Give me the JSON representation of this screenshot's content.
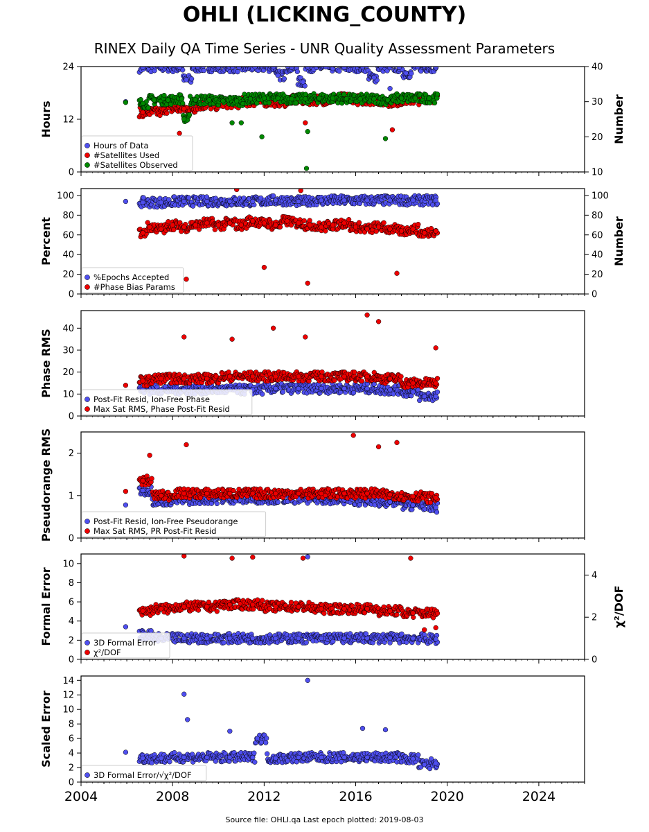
{
  "page": {
    "title": "OHLI (LICKING_COUNTY)",
    "subtitle": "RINEX Daily QA Time Series - UNR Quality Assessment Parameters",
    "footer": "Source file: OHLI.qa Last epoch plotted: 2019-08-03"
  },
  "colors": {
    "blue": "#4f4fef",
    "red": "#ee0000",
    "green": "#008800",
    "edge": "#000000"
  },
  "chart_data": [
    {
      "type": "scatter",
      "id": "hours",
      "ylabel": "Hours",
      "y2label": "Number",
      "xlim": [
        2004,
        2026
      ],
      "ylim": [
        0,
        24
      ],
      "y2lim": [
        10,
        40
      ],
      "yticks": [
        0,
        12,
        24
      ],
      "y2ticks": [
        10,
        20,
        30,
        40
      ],
      "legend": "lower-left",
      "series": [
        {
          "name": "Hours of Data",
          "color": "blue",
          "axis": "left",
          "x": [
            2005.95,
            2006.7,
            2007.5,
            2008.3,
            2009.1,
            2010.0,
            2010.9,
            2011.6,
            2012.4,
            2013.2,
            2013.9,
            2014.7,
            2015.5,
            2016.3,
            2017.1,
            2017.9,
            2018.7,
            2019.5,
            2008.6,
            2012.6,
            2013.7,
            2016.8,
            2017.5,
            2018.2
          ],
          "y": [
            16.0,
            23.8,
            23.9,
            23.8,
            23.9,
            23.9,
            23.8,
            23.9,
            23.9,
            23.8,
            23.9,
            23.9,
            23.8,
            23.9,
            23.9,
            23.8,
            23.9,
            23.9,
            21.0,
            22.0,
            20.5,
            21.5,
            19.0,
            22.5
          ]
        },
        {
          "name": "#Satellites Used",
          "color": "red",
          "axis": "right",
          "x": [
            2006.7,
            2008.5,
            2009.5,
            2010.5,
            2011.5,
            2012.5,
            2013.5,
            2014.5,
            2015.5,
            2016.5,
            2017.5,
            2018.5,
            2019.5,
            2008.3,
            2013.8,
            2017.6
          ],
          "y": [
            27.0,
            28.0,
            29.0,
            29.5,
            30.0,
            30.0,
            30.5,
            30.5,
            31.0,
            30.5,
            30.0,
            30.5,
            31.0,
            21.0,
            24.0,
            22.0
          ]
        },
        {
          "name": "#Satellites Observed",
          "color": "green",
          "axis": "right",
          "x": [
            2005.95,
            2006.7,
            2007.2,
            2007.8,
            2008.4,
            2009.0,
            2009.6,
            2010.2,
            2010.8,
            2011.4,
            2012.0,
            2012.6,
            2013.2,
            2013.8,
            2014.4,
            2015.0,
            2015.6,
            2016.2,
            2016.8,
            2017.4,
            2018.0,
            2018.6,
            2019.2,
            2019.55,
            2010.6,
            2011.0,
            2011.9,
            2013.9,
            2017.3,
            2008.5,
            2013.85
          ],
          "y": [
            29.8,
            29.5,
            30.5,
            30.5,
            30.8,
            30.5,
            30.5,
            30.2,
            30.2,
            30.8,
            31.0,
            31.0,
            30.8,
            30.8,
            31.0,
            31.0,
            30.8,
            30.8,
            30.8,
            30.5,
            31.0,
            31.0,
            31.0,
            31.0,
            24.0,
            24.0,
            20.0,
            21.5,
            19.5,
            25.0,
            11.0
          ]
        }
      ]
    },
    {
      "type": "scatter",
      "id": "percent",
      "ylabel": "Percent",
      "y2label": "Number",
      "xlim": [
        2004,
        2026
      ],
      "ylim": [
        0,
        107
      ],
      "y2lim": [
        0,
        107
      ],
      "yticks": [
        0,
        20,
        40,
        60,
        80,
        100
      ],
      "y2ticks": [
        0,
        20,
        40,
        60,
        80,
        100
      ],
      "legend": "lower-left",
      "series": [
        {
          "name": "%Epochs Accepted",
          "color": "blue",
          "x": [
            2005.95,
            2006.7,
            2007.5,
            2008.5,
            2009.5,
            2010.5,
            2011.5,
            2012.5,
            2013.5,
            2014.5,
            2015.5,
            2016.5,
            2017.5,
            2018.5,
            2019.5
          ],
          "y": [
            94,
            93,
            93,
            94,
            94,
            94,
            94,
            95,
            94,
            95,
            95,
            95,
            95,
            95,
            95
          ]
        },
        {
          "name": "#Phase Bias Params",
          "color": "red",
          "x": [
            2006.7,
            2007.0,
            2007.5,
            2008.0,
            2008.5,
            2009.0,
            2009.5,
            2010.0,
            2010.5,
            2011.0,
            2011.5,
            2012.0,
            2012.5,
            2013.0,
            2013.5,
            2014.0,
            2014.5,
            2015.0,
            2015.5,
            2016.0,
            2016.5,
            2017.0,
            2017.5,
            2018.0,
            2018.5,
            2019.0,
            2019.5,
            2008.6,
            2010.8,
            2013.6,
            2013.9,
            2017.8,
            2012.0
          ],
          "y": [
            62,
            68,
            66,
            70,
            68,
            70,
            72,
            70,
            72,
            70,
            74,
            72,
            70,
            74,
            72,
            70,
            68,
            70,
            72,
            68,
            66,
            68,
            66,
            64,
            66,
            62,
            64,
            15,
            106,
            105,
            11,
            21,
            27
          ]
        }
      ]
    },
    {
      "type": "scatter",
      "id": "phase-rms",
      "ylabel": "Phase RMS",
      "xlim": [
        2004,
        2026
      ],
      "ylim": [
        0,
        48
      ],
      "yticks": [
        0,
        10,
        20,
        30,
        40
      ],
      "legend": "lower-left",
      "series": [
        {
          "name": "Post-Fit Resid, Ion-Free Phase",
          "color": "blue",
          "x": [
            2006.7,
            2007.5,
            2008.5,
            2009.5,
            2010.5,
            2011.5,
            2012.5,
            2013.5,
            2014.5,
            2015.5,
            2016.5,
            2017.5,
            2018.5,
            2019.0,
            2019.5
          ],
          "y": [
            12,
            12,
            12,
            12,
            12,
            12,
            12.5,
            12.5,
            12.5,
            12.5,
            12.5,
            12,
            11,
            9,
            9
          ]
        },
        {
          "name": "Max Sat RMS, Phase Post-Fit Resid",
          "color": "red",
          "x": [
            2005.95,
            2006.7,
            2007.5,
            2008.5,
            2009.5,
            2010.5,
            2011.5,
            2012.5,
            2013.5,
            2014.5,
            2015.5,
            2016.5,
            2017.5,
            2018.5,
            2019.5,
            2012.4,
            2016.5,
            2017.0,
            2013.8,
            2008.5,
            2010.6,
            2019.5
          ],
          "y": [
            14,
            16,
            17,
            17,
            17,
            18,
            18,
            18,
            18,
            18,
            18,
            18,
            17,
            15,
            15,
            40,
            46,
            43,
            36,
            36,
            35,
            31
          ]
        }
      ]
    },
    {
      "type": "scatter",
      "id": "pseudorange-rms",
      "ylabel": "Pseudorange RMS",
      "xlim": [
        2004,
        2026
      ],
      "ylim": [
        0,
        2.5
      ],
      "yticks": [
        0,
        1,
        2
      ],
      "legend": "lower-left",
      "series": [
        {
          "name": "Post-Fit Resid, Ion-Free Pseudorange",
          "color": "blue",
          "x": [
            2005.95,
            2006.7,
            2007.5,
            2008.5,
            2009.5,
            2010.5,
            2011.5,
            2012.5,
            2013.5,
            2014.5,
            2015.5,
            2016.5,
            2017.5,
            2018.5,
            2019.5
          ],
          "y": [
            0.78,
            1.12,
            0.88,
            0.9,
            0.92,
            0.93,
            0.93,
            0.93,
            0.93,
            0.92,
            0.9,
            0.88,
            0.85,
            0.78,
            0.72
          ]
        },
        {
          "name": "Max Sat RMS, PR Post-Fit Resid",
          "color": "red",
          "x": [
            2005.95,
            2006.7,
            2007.5,
            2008.5,
            2009.5,
            2010.5,
            2011.5,
            2012.5,
            2013.5,
            2014.5,
            2015.5,
            2016.5,
            2017.5,
            2018.5,
            2019.5,
            2008.6,
            2015.9,
            2017.0,
            2017.8,
            2007.0
          ],
          "y": [
            1.1,
            1.35,
            1.0,
            1.05,
            1.05,
            1.05,
            1.05,
            1.05,
            1.05,
            1.05,
            1.05,
            1.05,
            1.02,
            0.98,
            0.95,
            2.2,
            2.42,
            2.15,
            2.25,
            1.95
          ]
        }
      ]
    },
    {
      "type": "scatter",
      "id": "formal-error",
      "ylabel": "Formal Error",
      "y2label": "χ²/DOF",
      "xlim": [
        2004,
        2026
      ],
      "ylim": [
        0,
        11
      ],
      "y2lim": [
        0,
        5
      ],
      "yticks": [
        0,
        2,
        4,
        6,
        8,
        10
      ],
      "y2ticks": [
        0,
        2,
        4
      ],
      "legend": "lower-left",
      "series": [
        {
          "name": "3D Formal Error",
          "color": "blue",
          "axis": "left",
          "x": [
            2005.95,
            2006.7,
            2007.5,
            2008.5,
            2009.5,
            2010.5,
            2011.5,
            2012.5,
            2013.5,
            2014.5,
            2015.5,
            2016.5,
            2017.5,
            2018.5,
            2019.5,
            2013.9
          ],
          "y": [
            3.4,
            2.5,
            2.2,
            2.2,
            2.2,
            2.2,
            2.2,
            2.2,
            2.2,
            2.2,
            2.2,
            2.2,
            2.2,
            2.2,
            2.1,
            10.7
          ]
        },
        {
          "name": "χ²/DOF",
          "color": "red",
          "axis": "right",
          "x": [
            2006.7,
            2007.5,
            2008.5,
            2009.5,
            2010.5,
            2011.5,
            2012.5,
            2013.5,
            2014.5,
            2015.5,
            2016.5,
            2017.5,
            2018.5,
            2019.0,
            2019.5,
            2008.5,
            2011.5,
            2010.6,
            2013.7,
            2018.4
          ],
          "y": [
            2.3,
            2.4,
            2.5,
            2.5,
            2.6,
            2.6,
            2.5,
            2.5,
            2.4,
            2.4,
            2.4,
            2.3,
            2.2,
            1.4,
            1.5,
            4.9,
            4.85,
            4.8,
            4.8,
            4.8
          ]
        }
      ]
    },
    {
      "type": "scatter",
      "id": "scaled-error",
      "ylabel": "Scaled Error",
      "xlabel_ticks": [
        "2004",
        "2008",
        "2012",
        "2016",
        "2020",
        "2024"
      ],
      "xticks": [
        2004,
        2008,
        2012,
        2016,
        2020,
        2024
      ],
      "xlim": [
        2004,
        2026
      ],
      "ylim": [
        0,
        14.6
      ],
      "yticks": [
        0,
        2,
        4,
        6,
        8,
        10,
        12,
        14
      ],
      "legend": "lower-left",
      "series": [
        {
          "name": "3D Formal Error/√χ²/DOF",
          "color": "blue",
          "x": [
            2005.95,
            2006.7,
            2007.5,
            2008.5,
            2009.5,
            2010.5,
            2011.5,
            2012.5,
            2013.5,
            2014.5,
            2015.5,
            2016.5,
            2017.5,
            2018.5,
            2019.0,
            2019.5,
            2013.9,
            2008.5,
            2008.65,
            2016.3,
            2017.3,
            2010.5,
            2011.7
          ],
          "y": [
            4.1,
            3.3,
            3.3,
            3.4,
            3.4,
            3.4,
            3.4,
            3.3,
            3.4,
            3.4,
            3.4,
            3.4,
            3.4,
            3.2,
            2.4,
            2.6,
            14.0,
            12.1,
            8.6,
            7.4,
            7.2,
            7.0,
            6.0
          ]
        }
      ]
    }
  ]
}
